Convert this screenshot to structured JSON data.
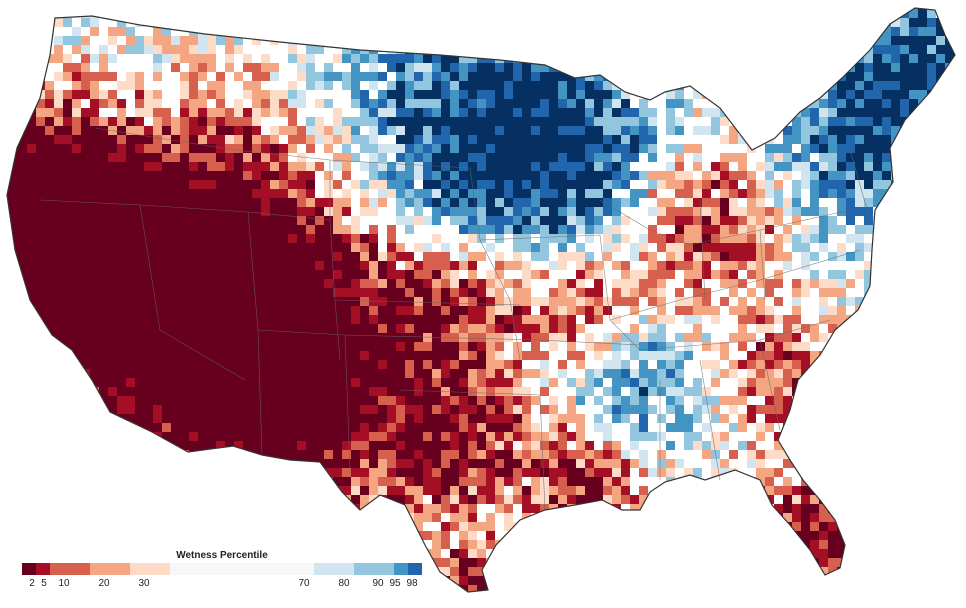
{
  "legend": {
    "title": "Wetness Percentile",
    "ticks": [
      "2",
      "5",
      "10",
      "20",
      "30",
      "70",
      "80",
      "90",
      "95",
      "98"
    ],
    "colors": {
      "p2": "#67001f",
      "p5": "#a50f25",
      "p10": "#d6604d",
      "p20": "#f4a582",
      "p30": "#fddbc7",
      "mid": "#ffffff",
      "p70": "#d1e5f0",
      "p80": "#92c5de",
      "p90": "#4393c3",
      "p95": "#2166ac",
      "p98": "#053061"
    }
  }
}
